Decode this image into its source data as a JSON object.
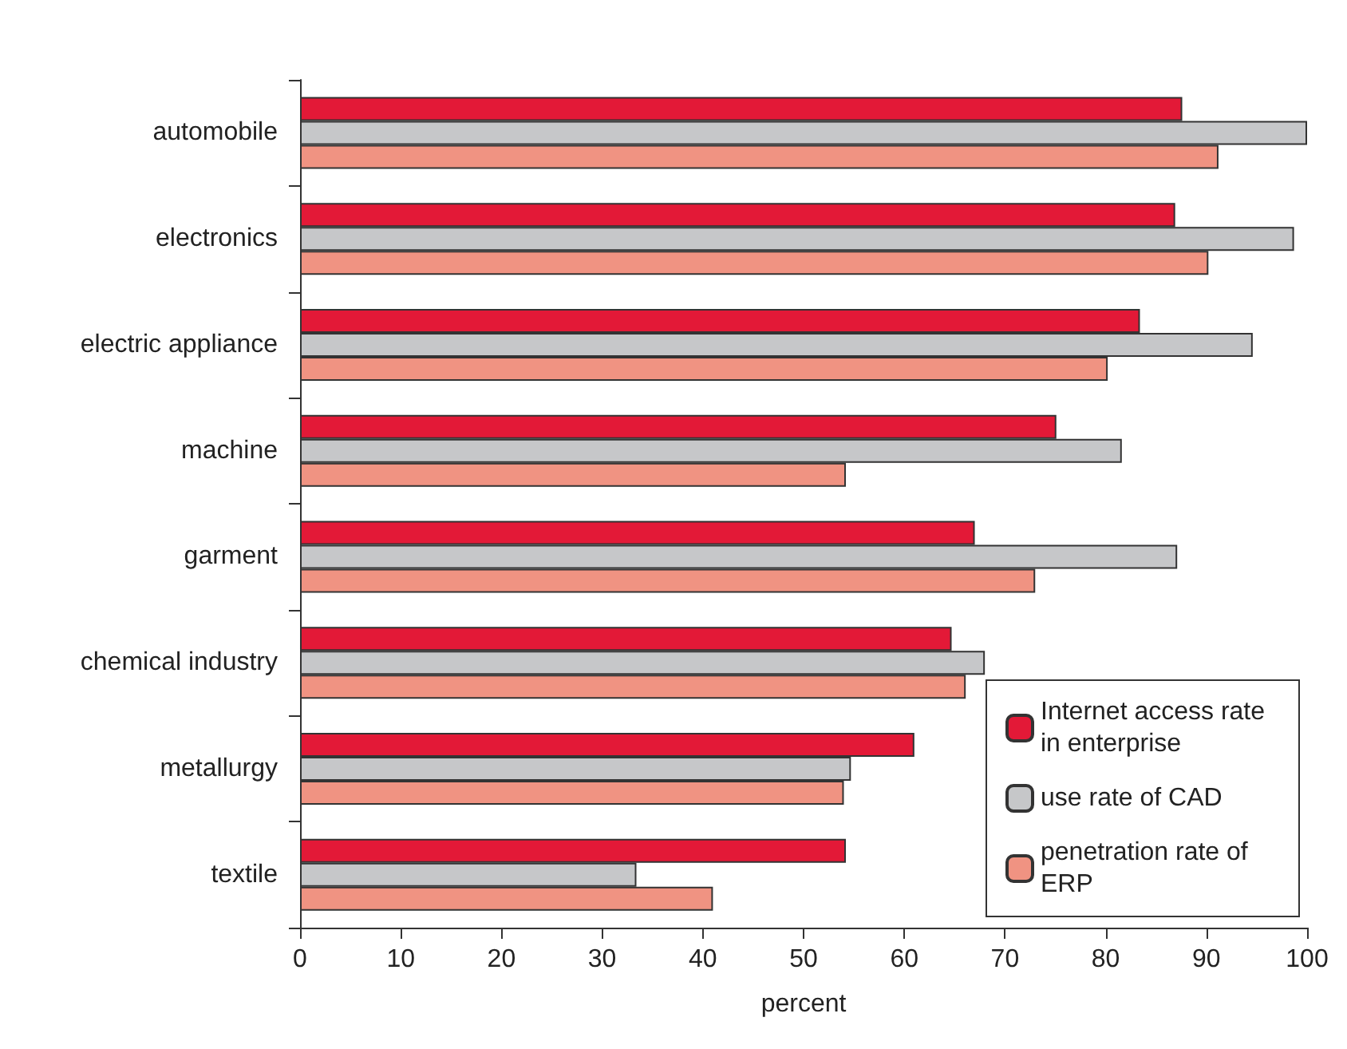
{
  "chart_data": {
    "type": "bar",
    "orientation": "horizontal",
    "xlabel": "percent",
    "categories": [
      "automobile",
      "electronics",
      "electric appliance",
      "machine",
      "garment",
      "chemical industry",
      "metallurgy",
      "textile"
    ],
    "series": [
      {
        "name": "Internet access rate in enterprise",
        "color": "#e31937",
        "values": [
          87.6,
          86.9,
          83.4,
          75.1,
          67.0,
          64.7,
          61.0,
          54.2
        ]
      },
      {
        "name": "use rate of CAD",
        "color": "#c6c7c9",
        "values": [
          100,
          98.7,
          94.6,
          81.6,
          87.1,
          68.0,
          54.7,
          33.4
        ]
      },
      {
        "name": "penetration rate of ERP",
        "color": "#f09382",
        "values": [
          91.2,
          90.2,
          80.2,
          54.2,
          73.0,
          66.1,
          54.0,
          41.0
        ]
      }
    ],
    "xlim": [
      0,
      100
    ],
    "xticks": [
      0,
      10,
      20,
      30,
      40,
      50,
      60,
      70,
      80,
      90,
      100
    ],
    "grid": false,
    "legend": "bottom right"
  }
}
